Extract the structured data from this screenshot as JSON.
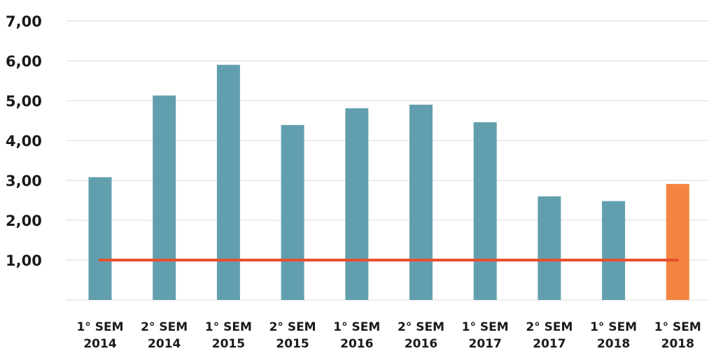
{
  "chart_data": {
    "type": "bar",
    "title": "",
    "xlabel": "",
    "ylabel": "",
    "ylim": [
      0,
      7
    ],
    "yticks": [
      1,
      2,
      3,
      4,
      5,
      6,
      7
    ],
    "ytick_labels": [
      "1,00",
      "2,00",
      "3,00",
      "4,00",
      "5,00",
      "6,00",
      "7,00"
    ],
    "grid": true,
    "legend": "none",
    "categories": [
      [
        "1° SEM",
        "2014"
      ],
      [
        "2° SEM",
        "2014"
      ],
      [
        "1° SEM",
        "2015"
      ],
      [
        "2° SEM",
        "2015"
      ],
      [
        "1° SEM",
        "2016"
      ],
      [
        "2° SEM",
        "2016"
      ],
      [
        "1° SEM",
        "2017"
      ],
      [
        "2° SEM",
        "2017"
      ],
      [
        "1° SEM",
        "2018"
      ],
      [
        "1° SEM",
        "2018"
      ]
    ],
    "values": [
      3.08,
      5.13,
      5.9,
      4.39,
      4.81,
      4.9,
      4.46,
      2.6,
      2.48,
      2.91
    ],
    "bar_colors": [
      "#629fae",
      "#629fae",
      "#629fae",
      "#629fae",
      "#629fae",
      "#629fae",
      "#629fae",
      "#629fae",
      "#629fae",
      "#f4843f"
    ],
    "reference_line": {
      "value": 1.0,
      "color": "#e8502e"
    },
    "colors": {
      "bar": "#629fae",
      "highlight": "#f4843f",
      "line": "#e8502e",
      "grid": "#d9d9d9"
    }
  }
}
